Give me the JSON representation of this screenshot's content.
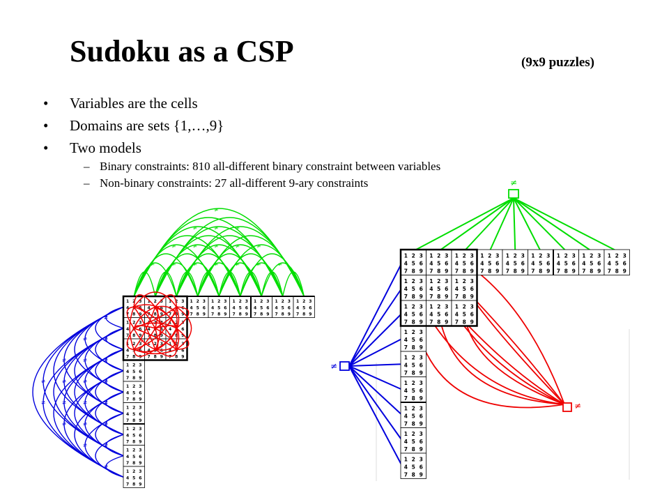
{
  "title": "Sudoku as a CSP",
  "subtitle": "(9x9 puzzles)",
  "bullets": [
    "Variables are the cells",
    "Domains are sets {1,…,9}",
    "Two models"
  ],
  "sub_bullets": [
    "Binary constraints: 810 all-different binary constraint between variables",
    "Non-binary constraints: 27 all-different 9-ary constraints"
  ],
  "diagram": {
    "cell_digits": [
      "1",
      "2",
      "3",
      "4",
      "5",
      "6",
      "7",
      "8",
      "9"
    ],
    "constraint_symbol": "≠",
    "colors": {
      "row": "#00dd00",
      "column": "#0000dd",
      "block": "#ee0000",
      "grid": "#000000"
    }
  }
}
